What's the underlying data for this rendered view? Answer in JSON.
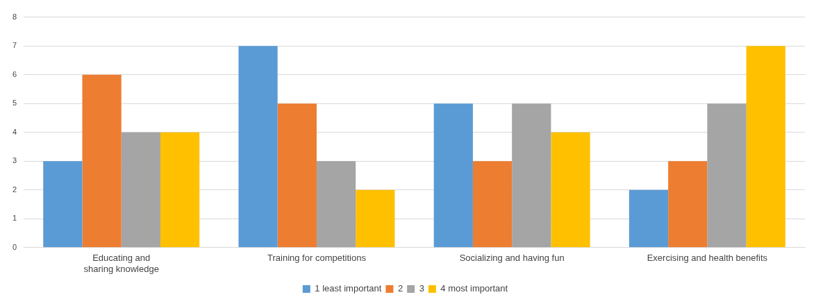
{
  "chart_data": {
    "type": "bar",
    "categories": [
      "Educating and sharing knowledge",
      "Training for competitions",
      "Socializing and having fun",
      "Exercising and health benefits"
    ],
    "series": [
      {
        "name": "1 least important",
        "color": "#5b9bd5",
        "values": [
          3,
          7,
          5,
          2
        ]
      },
      {
        "name": "2",
        "color": "#ed7d31",
        "values": [
          6,
          5,
          3,
          3
        ]
      },
      {
        "name": "3",
        "color": "#a5a5a5",
        "values": [
          4,
          3,
          5,
          5
        ]
      },
      {
        "name": "4 most important",
        "color": "#ffc000",
        "values": [
          4,
          2,
          4,
          7
        ]
      }
    ],
    "ylim": [
      0,
      8
    ],
    "yticks": [
      0,
      1,
      2,
      3,
      4,
      5,
      6,
      7,
      8
    ],
    "grid": "y",
    "legend": "bottom"
  }
}
